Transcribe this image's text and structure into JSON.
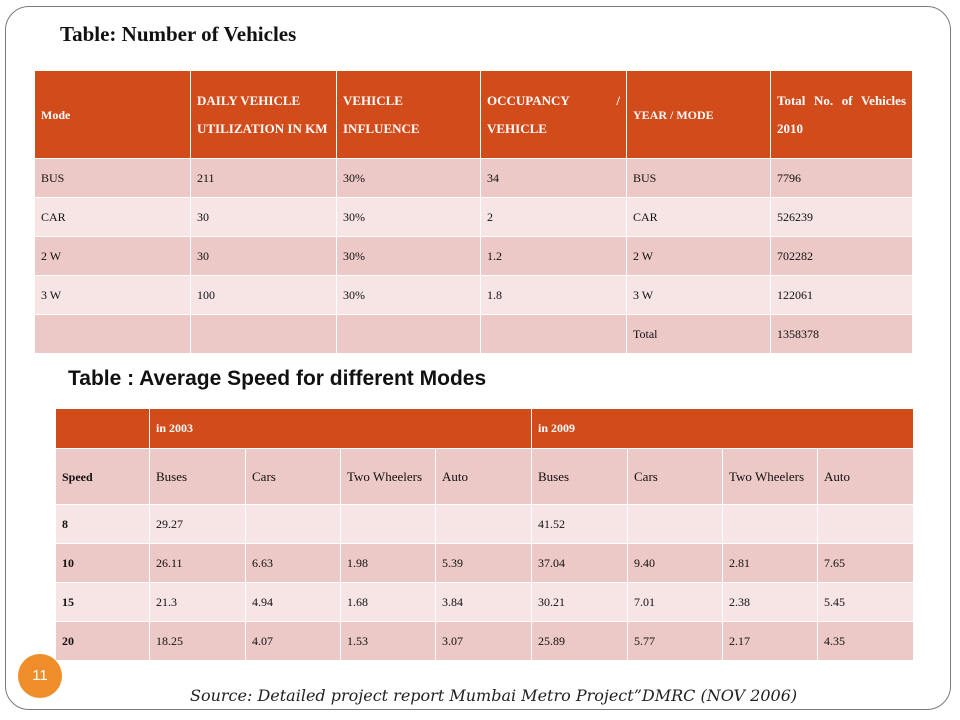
{
  "table1": {
    "title": "Table: Number of Vehicles",
    "headers": [
      "Mode",
      "DAILY VEHICLE UTILIZATION IN KM",
      "VEHICLE INFLUENCE",
      "OCCUPANCY / VEHICLE",
      "YEAR / MODE",
      "Total No. of Vehicles",
      "2010"
    ],
    "rows": [
      [
        "BUS",
        "211",
        "30%",
        "34",
        "BUS",
        "7796"
      ],
      [
        "CAR",
        "30",
        "30%",
        "2",
        "CAR",
        "526239"
      ],
      [
        "2 W",
        "30",
        "30%",
        "1.2",
        "2 W",
        "702282"
      ],
      [
        "3 W",
        "100",
        "30%",
        "1.8",
        "3 W",
        "122061"
      ],
      [
        "",
        "",
        "",
        "",
        "Total",
        "1358378"
      ]
    ]
  },
  "table2": {
    "title": "Table : Average Speed for different Modes",
    "group_headers": [
      "in 2003",
      "in 2009"
    ],
    "sub_headers": [
      "Speed",
      "Buses",
      "Cars",
      "Two Wheelers",
      "Auto",
      "Buses",
      "Cars",
      "Two Wheelers",
      "Auto"
    ],
    "rows": [
      [
        "8",
        "29.27",
        "",
        "",
        "",
        "41.52",
        "",
        "",
        ""
      ],
      [
        "10",
        "26.11",
        "6.63",
        "1.98",
        "5.39",
        "37.04",
        "9.40",
        "2.81",
        "7.65"
      ],
      [
        "15",
        "21.3",
        "4.94",
        "1.68",
        "3.84",
        "30.21",
        "7.01",
        "2.38",
        "5.45"
      ],
      [
        "20",
        "18.25",
        "4.07",
        "1.53",
        "3.07",
        "25.89",
        "5.77",
        "2.17",
        "4.35"
      ]
    ]
  },
  "source": "Source: Detailed project report Mumbai Metro Project”DMRC (NOV 2006)",
  "page_number": "11",
  "colors": {
    "header": "#d24b1a",
    "row_dark": "#ecc8c6",
    "row_light": "#f6e5e4",
    "badge": "#f08d2b"
  }
}
